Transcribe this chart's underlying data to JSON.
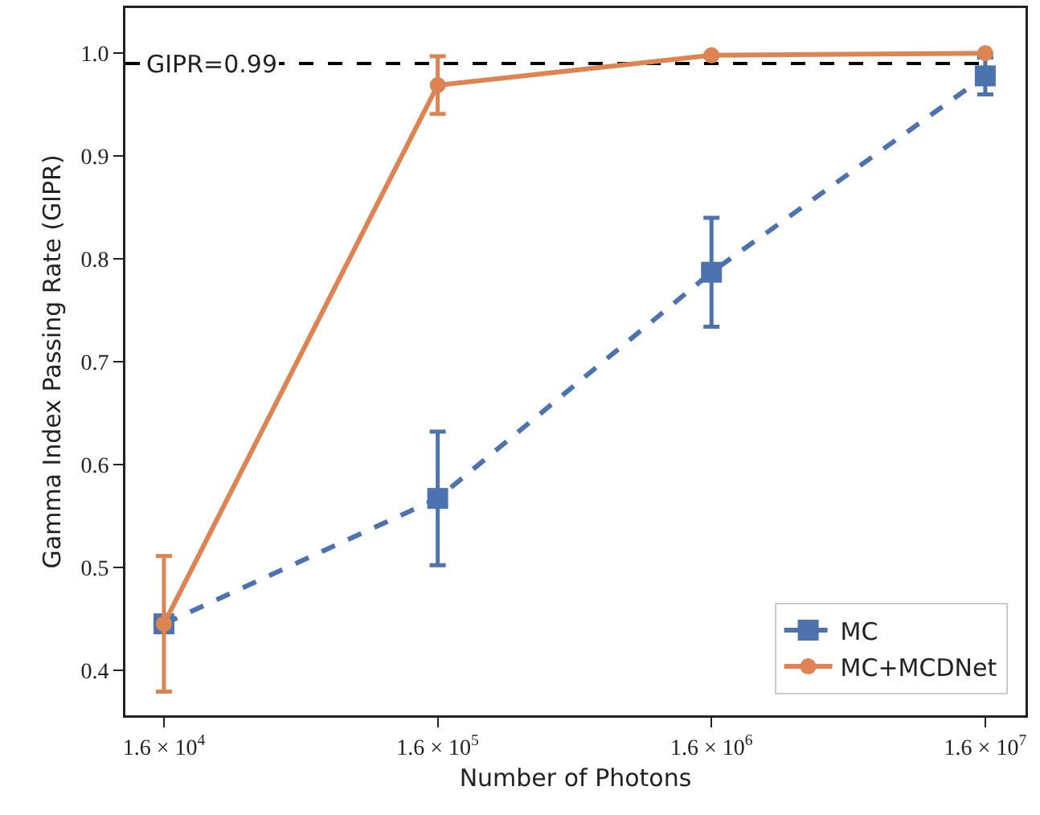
{
  "chart_data": {
    "type": "line",
    "xlabel": "Number of Photons",
    "ylabel": "Gamma Index Passing Rate (GIPR)",
    "x": [
      16000,
      160000,
      1600000,
      16000000
    ],
    "series": [
      {
        "name": "MC",
        "color": "#4c72b0",
        "values": [
          0.445,
          0.567,
          0.787,
          0.978
        ],
        "errors": [
          null,
          0.065,
          0.053,
          0.018
        ],
        "marker": "square",
        "line_style": "dashed"
      },
      {
        "name": "MC+MCDNet",
        "color": "#dd8452",
        "values": [
          0.445,
          0.969,
          0.998,
          1.0
        ],
        "errors": [
          0.066,
          0.028,
          null,
          null
        ],
        "marker": "circle",
        "line_style": "solid"
      }
    ],
    "log": "x",
    "xlim": [
      11570,
      22450000
    ],
    "ylim": [
      0.356,
      1.044
    ],
    "xticks": [
      {
        "value": 16000,
        "label": "1.6 × 10$^{4}$"
      },
      {
        "value": 160000,
        "label": "1.6 × 10$^{5}$"
      },
      {
        "value": 1600000,
        "label": "1.6 × 10$^{6}$"
      },
      {
        "value": 16000000,
        "label": "1.6 × 10$^{7}$"
      }
    ],
    "yticks": [
      0.4,
      0.5,
      0.6,
      0.7,
      0.8,
      0.9,
      {
        "value": 1.0,
        "label": "1.0"
      }
    ],
    "ref_lines": [
      {
        "axis": "y",
        "value": 0.99,
        "label": "GIPR=0.99",
        "color": "#000000",
        "line_style": "dashed"
      }
    ],
    "grid": false,
    "legend": "bottom right"
  }
}
